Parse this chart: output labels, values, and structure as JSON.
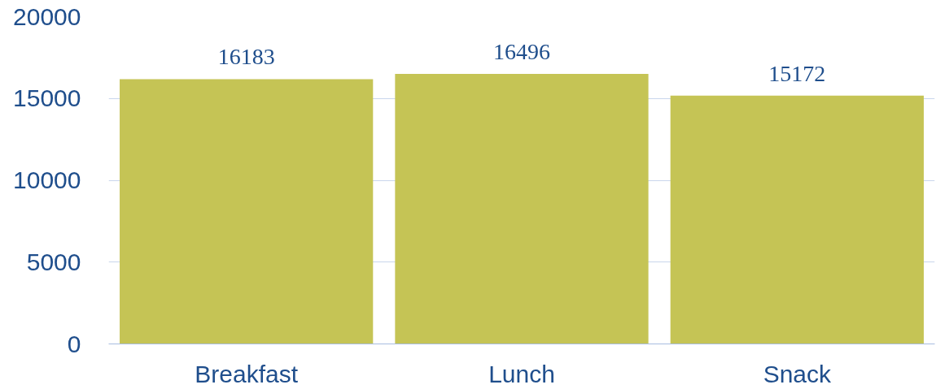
{
  "chart_data": {
    "type": "bar",
    "categories": [
      "Breakfast",
      "Lunch",
      "Snack"
    ],
    "values": [
      16183,
      16496,
      15172
    ],
    "color": "#c5c455",
    "ylim": [
      0,
      20000
    ],
    "yticks": [
      0,
      5000,
      10000,
      15000,
      20000
    ],
    "grid": "y",
    "data_labels": true
  }
}
